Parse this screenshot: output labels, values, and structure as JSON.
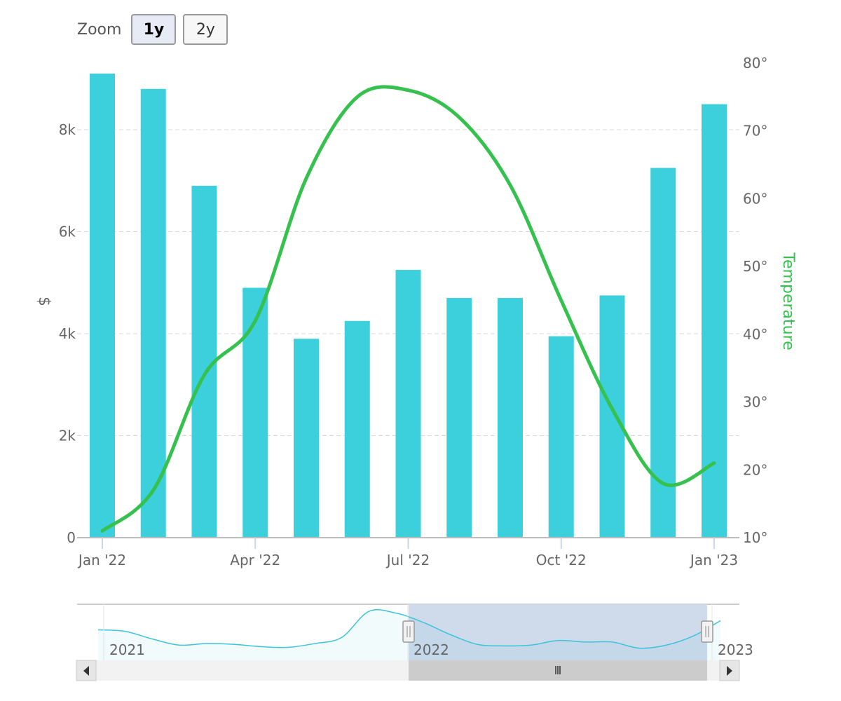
{
  "zoom": {
    "label": "Zoom",
    "buttons": [
      {
        "label": "1y",
        "active": true
      },
      {
        "label": "2y",
        "active": false
      }
    ]
  },
  "colors": {
    "bar": "#3ccfdc",
    "line": "#36c14f",
    "grid": "#d9d9d9",
    "navigator_fill": "#cfdaeb",
    "navigator_line": "#3cc4d8"
  },
  "chart_data": {
    "type": "bar",
    "categories": [
      "Jan '22",
      "Feb '22",
      "Mar '22",
      "Apr '22",
      "May '22",
      "Jun '22",
      "Jul '22",
      "Aug '22",
      "Sep '22",
      "Oct '22",
      "Nov '22",
      "Dec '22",
      "Jan '23"
    ],
    "series": [
      {
        "type": "bar",
        "axis": "left",
        "values": [
          9100,
          8800,
          6900,
          4900,
          3900,
          4250,
          5250,
          4700,
          4700,
          3950,
          4750,
          7250,
          8500
        ]
      },
      {
        "type": "line",
        "axis": "right",
        "name": "Temperature",
        "values": [
          11,
          17,
          34,
          42,
          63,
          75,
          76,
          72,
          62,
          45,
          29,
          18,
          21
        ]
      }
    ],
    "x_ticks": [
      "Jan '22",
      "Apr '22",
      "Jul '22",
      "Oct '22",
      "Jan '23"
    ],
    "ylabel": "$",
    "y_ticks": [
      "0",
      "2k",
      "4k",
      "6k",
      "8k"
    ],
    "ylim": [
      0,
      9100
    ],
    "y2label": "Temperature",
    "y2_ticks": [
      "10°",
      "20°",
      "30°",
      "40°",
      "50°",
      "60°",
      "70°",
      "80°"
    ],
    "y2lim": [
      10,
      80
    ],
    "grid": true,
    "navigator": {
      "year_labels": [
        "2021",
        "2022",
        "2023"
      ],
      "selected_range": [
        "Jan '22",
        "Jan '23"
      ],
      "series_values": [
        8000,
        7900,
        7400,
        7000,
        7100,
        7050,
        6900,
        6850,
        7100,
        7500,
        9200,
        9100,
        8500,
        7700,
        7050,
        6950,
        7000,
        7300,
        7200,
        7200,
        6800,
        7000,
        7600,
        8600
      ]
    }
  }
}
